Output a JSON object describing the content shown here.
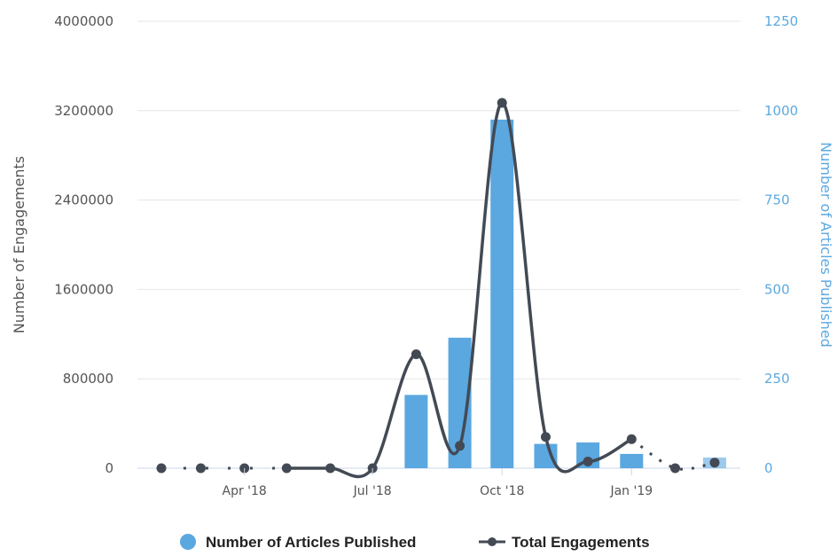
{
  "chart_data": {
    "type": "bar",
    "xlabel": "",
    "x_ticks": [
      "Apr '18",
      "Jul '18",
      "Oct '18",
      "Jan '19"
    ],
    "y_left": {
      "label": "Number of Engagements",
      "range": [
        0,
        4000000
      ],
      "ticks": [
        "0",
        "800000",
        "1600000",
        "2400000",
        "3200000",
        "4000000"
      ]
    },
    "y_right": {
      "label": "Number of Articles Published",
      "range": [
        0,
        1250
      ],
      "ticks": [
        "0",
        "250",
        "500",
        "750",
        "1000",
        "1250"
      ]
    },
    "grid": true,
    "legend_position": "bottom-center",
    "colors": {
      "bars": "#5ba7e0",
      "line": "#434a54",
      "left_axis_text": "#555555",
      "right_axis_text": "#5da9e0",
      "grid": "#e6e6e6"
    },
    "series": [
      {
        "name": "Number of Articles Published",
        "type": "bar",
        "axis": "right",
        "x": [
          "2018-02-01",
          "2018-03-01",
          "2018-04-01",
          "2018-05-01",
          "2018-06-01",
          "2018-07-01",
          "2018-08-01",
          "2018-09-01",
          "2018-10-01",
          "2018-11-01",
          "2018-12-01",
          "2019-01-01",
          "2019-02-01",
          "2019-03-01"
        ],
        "values": [
          0,
          0,
          0,
          0,
          0,
          0,
          205,
          365,
          975,
          68,
          72,
          40,
          0,
          30
        ]
      },
      {
        "name": "Total Engagements",
        "type": "line",
        "axis": "left",
        "x": [
          "2018-02-01",
          "2018-03-01",
          "2018-04-01",
          "2018-05-01",
          "2018-06-01",
          "2018-07-01",
          "2018-08-01",
          "2018-09-01",
          "2018-10-01",
          "2018-11-01",
          "2018-12-01",
          "2019-01-01",
          "2019-02-01",
          "2019-03-01"
        ],
        "values": [
          0,
          0,
          0,
          0,
          0,
          0,
          1020000,
          200000,
          3270000,
          280000,
          60000,
          260000,
          0,
          50000
        ]
      }
    ]
  }
}
